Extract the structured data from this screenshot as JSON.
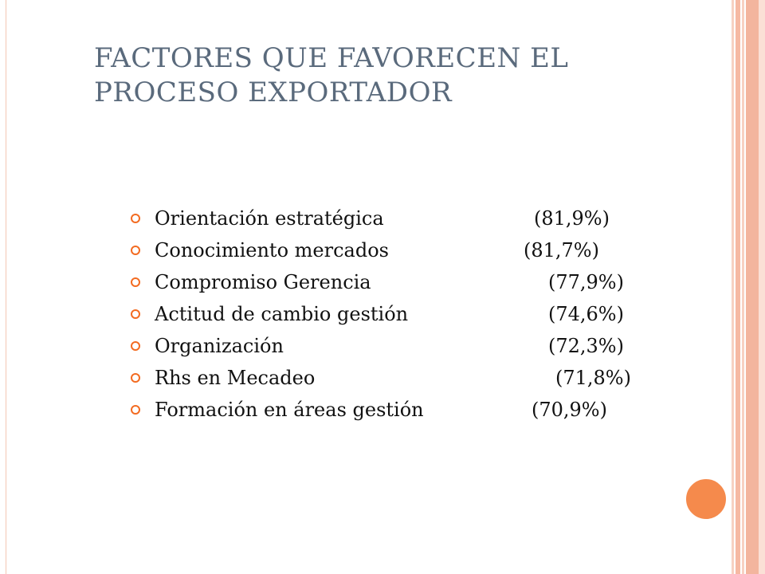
{
  "slide": {
    "title_line1": "FACTORES QUE FAVORECEN EL",
    "title_line2": "PROCESO EXPORTADOR",
    "items": [
      {
        "label": "Orientación estratégica",
        "value": "(81,9%)"
      },
      {
        "label": "Conocimiento mercados",
        "value": "(81,7%)"
      },
      {
        "label": "Compromiso Gerencia",
        "value": "(77,9%)"
      },
      {
        "label": "Actitud de cambio gestión",
        "value": "(74,6%)"
      },
      {
        "label": "Organización",
        "value": "(72,3%)"
      },
      {
        "label": "Rhs en Mecadeo",
        "value": "(71,8%)"
      },
      {
        "label": "Formación en áreas gestión",
        "value": "(70,9%)"
      }
    ]
  },
  "colors": {
    "title": "#5a6a7c",
    "bullet": "#f36b21",
    "accent_circle": "#f58a4c",
    "stripes": "#f3b59e",
    "text": "#111111"
  },
  "icons": {
    "bullet": "hollow-circle-bullet-icon",
    "decoration": "orange-circle-icon"
  }
}
